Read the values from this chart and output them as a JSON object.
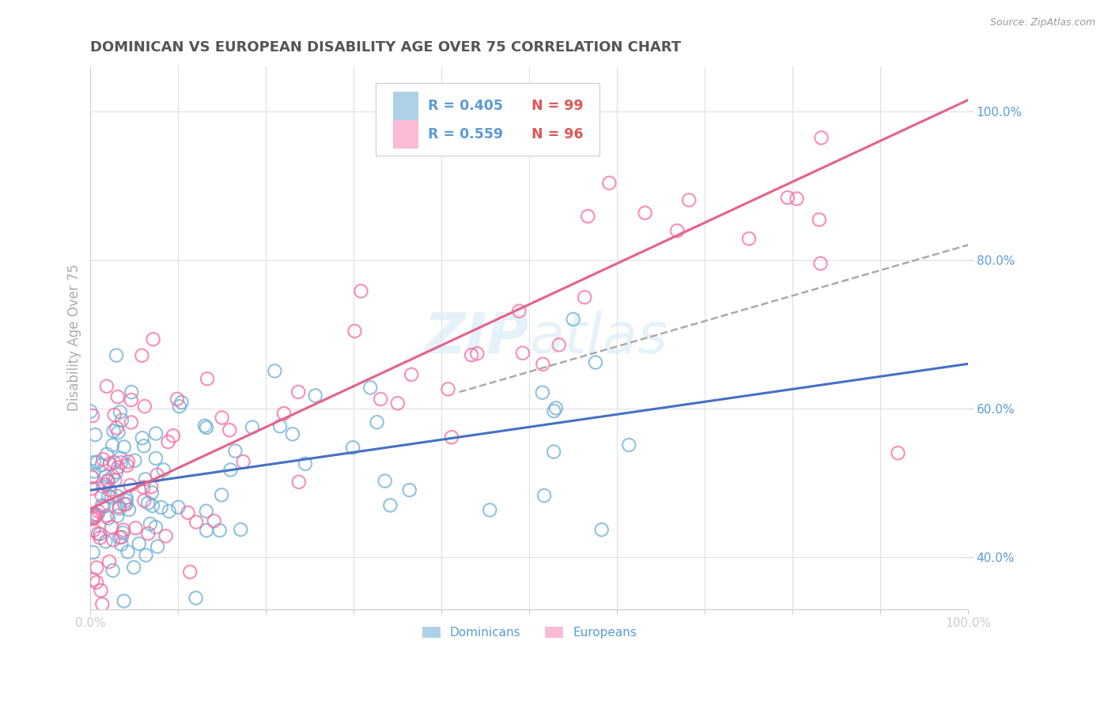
{
  "title": "DOMINICAN VS EUROPEAN DISABILITY AGE OVER 75 CORRELATION CHART",
  "source": "Source: ZipAtlas.com",
  "ylabel": "Disability Age Over 75",
  "y_tick_labels": [
    "40.0%",
    "60.0%",
    "80.0%",
    "100.0%"
  ],
  "y_tick_values": [
    0.4,
    0.6,
    0.8,
    1.0
  ],
  "x_range": [
    0.0,
    1.0
  ],
  "y_range": [
    0.33,
    1.06
  ],
  "dominican_R": 0.405,
  "dominican_N": 99,
  "european_R": 0.559,
  "european_N": 96,
  "dominican_color": "#6baed6",
  "european_color": "#f768a1",
  "title_color": "#555555",
  "axis_label_color": "#aaaaaa",
  "tick_color": "#5b9bd5",
  "watermark_color": "#d0e8f5",
  "legend_text_color_r": "#5b9bd5",
  "legend_text_color_n": "#e05555",
  "source_color": "#999999",
  "dom_line_color": "#4472c4",
  "eur_line_color": "#e8608a",
  "dash_line_color": "#aaaaaa",
  "dom_line_start_x": 0.0,
  "dom_line_start_y": 0.49,
  "dom_line_end_x": 1.0,
  "dom_line_end_y": 0.66,
  "eur_line_start_x": 0.0,
  "eur_line_start_y": 0.465,
  "eur_line_end_x": 1.0,
  "eur_line_end_y": 1.015,
  "dash_line_start_x": 0.42,
  "dash_line_start_y": 0.622,
  "dash_line_end_x": 1.0,
  "dash_line_end_y": 0.82
}
